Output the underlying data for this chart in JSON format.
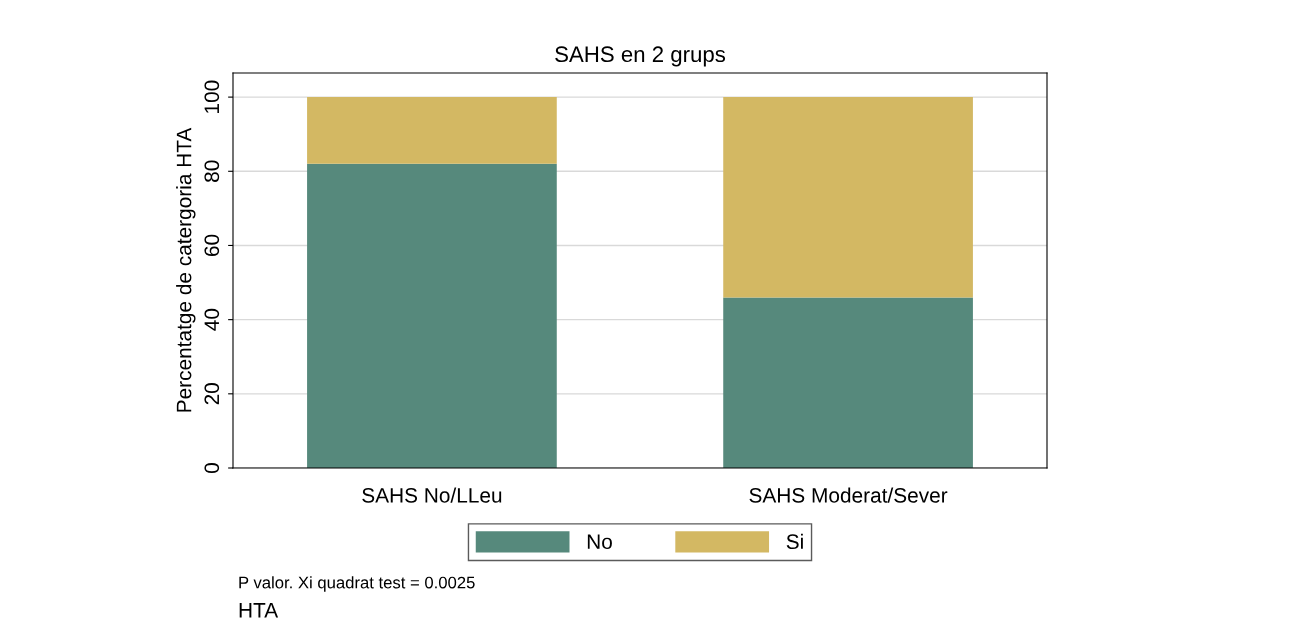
{
  "chart_data": {
    "type": "bar",
    "title": "SAHS en 2 grups",
    "ylabel": "Percentatge de catergoria HTA",
    "categories": [
      "SAHS No/LLeu",
      "SAHS Moderat/Sever"
    ],
    "series": [
      {
        "name": "No",
        "color": "#56897c",
        "values": [
          82,
          46
        ]
      },
      {
        "name": "Si",
        "color": "#d3b863",
        "values": [
          18,
          54
        ]
      }
    ],
    "stacked": true,
    "ylim": [
      0,
      106.5
    ],
    "yticks": [
      0,
      20,
      40,
      60,
      80,
      100
    ],
    "grid": "y",
    "legend": "bottom",
    "annotations": [
      "P valor. Xi quadrat test = 0.0025",
      "HTA"
    ]
  }
}
